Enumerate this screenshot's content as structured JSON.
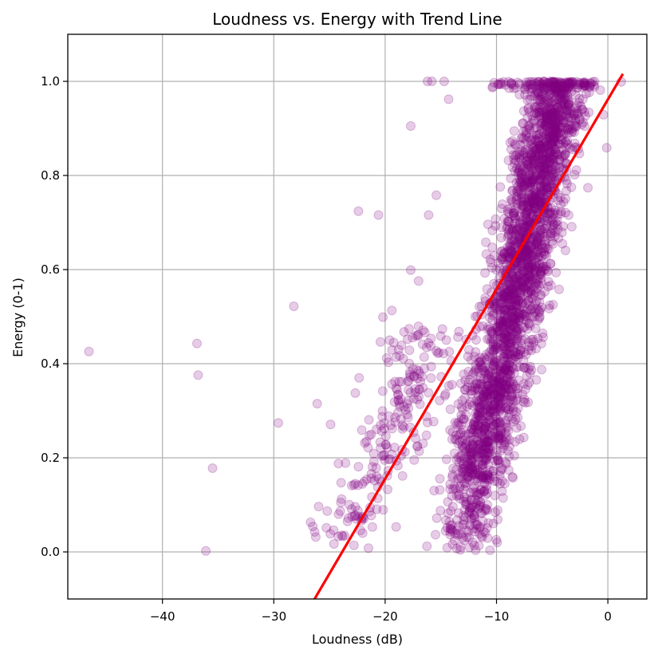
{
  "chart_data": {
    "type": "scatter",
    "title": "Loudness vs. Energy with Trend Line",
    "xlabel": "Loudness (dB)",
    "ylabel": "Energy (0-1)",
    "xlim": [
      -48.5,
      3.5
    ],
    "ylim": [
      -0.1,
      1.1
    ],
    "x_ticks": [
      -40,
      -30,
      -20,
      -10,
      0
    ],
    "x_tick_labels": [
      "−40",
      "−30",
      "−20",
      "−10",
      "0"
    ],
    "y_ticks": [
      0.0,
      0.2,
      0.4,
      0.6,
      0.8,
      1.0
    ],
    "y_tick_labels": [
      "0.0",
      "0.2",
      "0.4",
      "0.6",
      "0.8",
      "1.0"
    ],
    "grid": true,
    "point_color": "#800080",
    "point_alpha": 0.2,
    "trend_color": "#ff0000",
    "trend_line": {
      "slope": 0.0403,
      "intercept": 0.9614,
      "x_range": [
        -26.4,
        1.3
      ]
    },
    "outliers": [
      {
        "x": -46.6,
        "y": 0.426
      },
      {
        "x": -36.9,
        "y": 0.443
      },
      {
        "x": -36.8,
        "y": 0.376
      },
      {
        "x": -35.5,
        "y": 0.178
      },
      {
        "x": -36.1,
        "y": 0.002
      },
      {
        "x": -29.6,
        "y": 0.274
      },
      {
        "x": -28.2,
        "y": 0.522
      },
      {
        "x": -26.1,
        "y": 0.315
      },
      {
        "x": -26.5,
        "y": 0.054
      },
      {
        "x": -25.2,
        "y": 0.087
      },
      {
        "x": -24.9,
        "y": 0.271
      },
      {
        "x": -22.4,
        "y": 0.724
      },
      {
        "x": -20.6,
        "y": 0.716
      },
      {
        "x": -24.6,
        "y": 0.017
      },
      {
        "x": -23.3,
        "y": 0.072
      },
      {
        "x": -21.5,
        "y": 0.008
      },
      {
        "x": -22.8,
        "y": 0.014
      },
      {
        "x": -24.2,
        "y": 0.188
      },
      {
        "x": -19.6,
        "y": 0.45
      },
      {
        "x": -20.2,
        "y": 0.499
      },
      {
        "x": -19.4,
        "y": 0.513
      },
      {
        "x": -17.7,
        "y": 0.905
      },
      {
        "x": -16.2,
        "y": 1.0
      },
      {
        "x": -15.8,
        "y": 1.0
      },
      {
        "x": -14.7,
        "y": 1.0
      },
      {
        "x": -14.3,
        "y": 0.962
      },
      {
        "x": -15.4,
        "y": 0.758
      },
      {
        "x": -16.1,
        "y": 0.716
      },
      {
        "x": -17.7,
        "y": 0.599
      },
      {
        "x": -17.0,
        "y": 0.576
      },
      {
        "x": -0.1,
        "y": 0.859
      },
      {
        "x": 1.2,
        "y": 0.999
      },
      {
        "x": -0.4,
        "y": 0.929
      }
    ]
  }
}
